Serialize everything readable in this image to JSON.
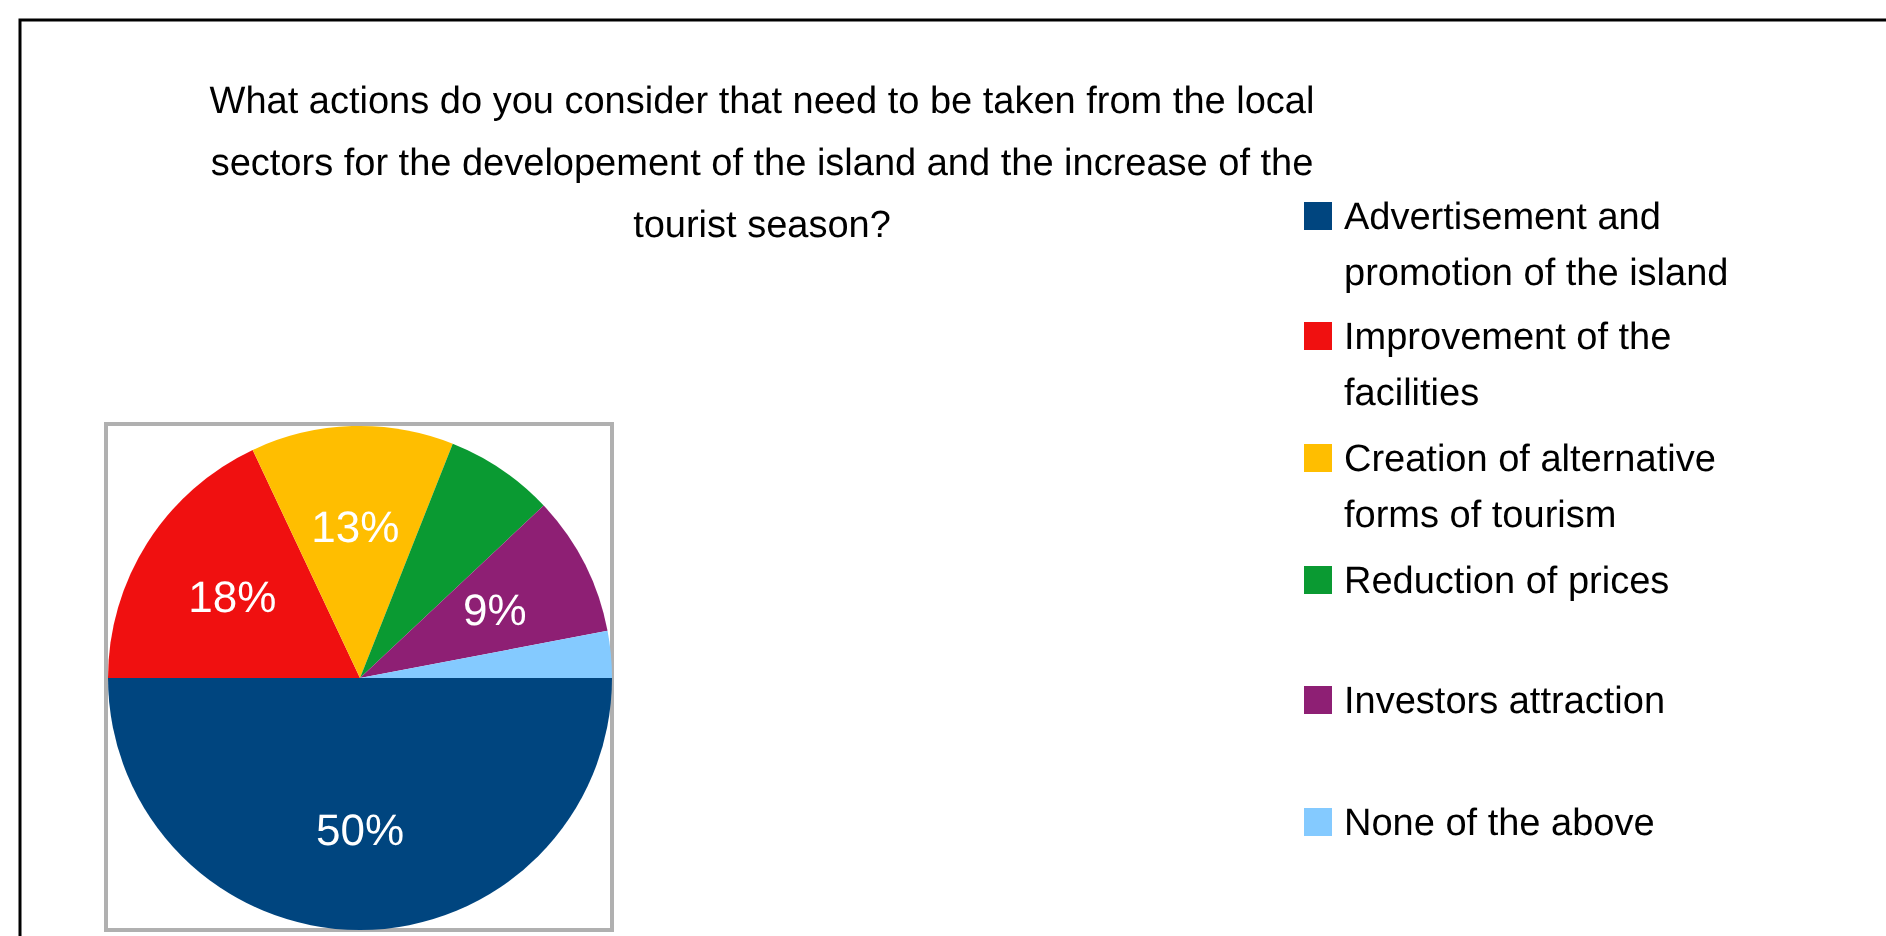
{
  "chart_data": {
    "type": "pie",
    "title": "What actions do you consider that need to be taken from the local sectors for the developement of the island and the increase of the tourist season?",
    "categories": [
      "Advertisement and promotion of the island",
      "Improvement of the facilities",
      "Creation of alternative forms of tourism",
      "Reduction of prices",
      "Investors attraction",
      "None of the above"
    ],
    "values": [
      50,
      18,
      13,
      7,
      9,
      3
    ],
    "value_labels": [
      "50%",
      "18%",
      "13%",
      null,
      "9%",
      null
    ],
    "colors": [
      "#00457f",
      "#f01010",
      "#ffbe00",
      "#0a9a32",
      "#8e1f74",
      "#84caff"
    ],
    "legend": "right"
  }
}
